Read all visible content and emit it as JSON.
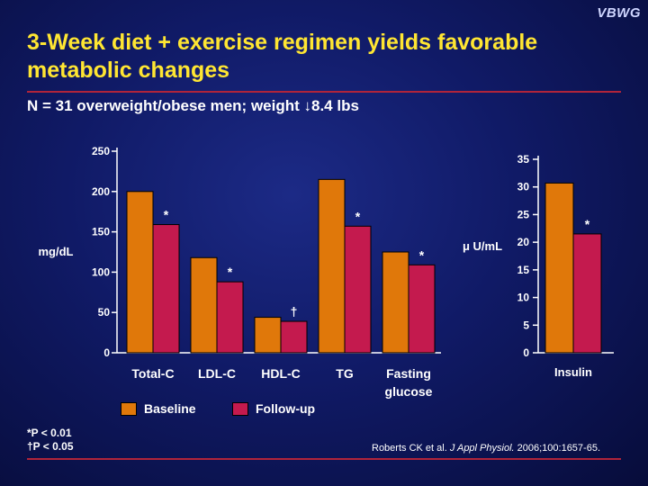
{
  "logo": "VBWG",
  "title": "3-Week diet + exercise regimen yields favorable metabolic changes",
  "subtitle_prefix": "N = 31 overweight/obese men; weight ",
  "subtitle_arrow": "↓",
  "subtitle_suffix": "8.4 lbs",
  "footnotes": [
    "*P < 0.01",
    "†P < 0.05"
  ],
  "citation": {
    "authors": "Roberts CK et al. ",
    "journal": "J Appl Physiol.",
    "details": " 2006;100:1657-65."
  },
  "colors": {
    "baseline": "#e0780a",
    "followup": "#c41a4e",
    "title": "#ffe632",
    "rule": "#b0243a"
  },
  "chart_data": [
    {
      "type": "bar",
      "ylabel": "mg/dL",
      "ylim": [
        0,
        250
      ],
      "yticks": [
        0,
        50,
        100,
        150,
        200,
        250
      ],
      "categories": [
        "Total-C",
        "LDL-C",
        "HDL-C",
        "TG",
        "Fasting glucose"
      ],
      "category_lines": [
        [
          "Total-C"
        ],
        [
          "LDL-C"
        ],
        [
          "HDL-C"
        ],
        [
          "TG"
        ],
        [
          "Fasting",
          "glucose"
        ]
      ],
      "series": [
        {
          "name": "Baseline",
          "values": [
            200,
            118,
            44,
            215,
            125
          ]
        },
        {
          "name": "Follow-up",
          "values": [
            159,
            88,
            39,
            157,
            109
          ]
        }
      ],
      "annotations": [
        "*",
        "*",
        "†",
        "*",
        "*"
      ]
    },
    {
      "type": "bar",
      "ylabel": "μ U/mL",
      "ylim": [
        0,
        35
      ],
      "yticks": [
        0,
        5,
        10,
        15,
        20,
        25,
        30,
        35
      ],
      "categories": [
        "Insulin"
      ],
      "category_lines": [
        [
          "Insulin"
        ]
      ],
      "series": [
        {
          "name": "Baseline",
          "values": [
            30.7
          ]
        },
        {
          "name": "Follow-up",
          "values": [
            21.5
          ]
        }
      ],
      "annotations": [
        "*"
      ]
    }
  ]
}
